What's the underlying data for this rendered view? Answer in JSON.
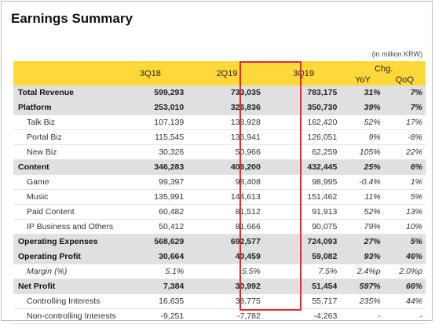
{
  "title": "Earnings Summary",
  "unit_note": "(in million KRW)",
  "headers": {
    "periods": [
      "3Q18",
      "2Q19",
      "3Q19"
    ],
    "chg": "Chg.",
    "yoy": "YoY",
    "qoq": "QoQ"
  },
  "highlight_color": "#d9302c",
  "header_color": "#ffd83a",
  "rows": [
    {
      "label": "Total Revenue",
      "v": [
        "599,293",
        "733,035",
        "783,175"
      ],
      "yoy": "31%",
      "qoq": "7%"
    },
    {
      "label": "Platform",
      "v": [
        "253,010",
        "326,836",
        "350,730"
      ],
      "yoy": "39%",
      "qoq": "7%"
    },
    {
      "label": "Talk Biz",
      "v": [
        "107,139",
        "138,928",
        "162,420"
      ],
      "yoy": "52%",
      "qoq": "17%"
    },
    {
      "label": "Portal Biz",
      "v": [
        "115,545",
        "136,941",
        "126,051"
      ],
      "yoy": "9%",
      "qoq": "-8%"
    },
    {
      "label": "New Biz",
      "v": [
        "30,326",
        "50,966",
        "62,259"
      ],
      "yoy": "105%",
      "qoq": "22%"
    },
    {
      "label": "Content",
      "v": [
        "346,283",
        "406,200",
        "432,445"
      ],
      "yoy": "25%",
      "qoq": "6%"
    },
    {
      "label": "Game",
      "v": [
        "99,397",
        "98,408",
        "98,995"
      ],
      "yoy": "-0.4%",
      "qoq": "1%"
    },
    {
      "label": "Music",
      "v": [
        "135,991",
        "144,613",
        "151,462"
      ],
      "yoy": "11%",
      "qoq": "5%"
    },
    {
      "label": "Paid Content",
      "v": [
        "60,482",
        "81,512",
        "91,913"
      ],
      "yoy": "52%",
      "qoq": "13%"
    },
    {
      "label": "IP Business and Others",
      "v": [
        "50,412",
        "81,666",
        "90,075"
      ],
      "yoy": "79%",
      "qoq": "10%"
    },
    {
      "label": "Operating Expenses",
      "v": [
        "568,629",
        "692,577",
        "724,093"
      ],
      "yoy": "27%",
      "qoq": "5%"
    },
    {
      "label": "Operating Profit",
      "v": [
        "30,664",
        "40,459",
        "59,082"
      ],
      "yoy": "93%",
      "qoq": "46%"
    },
    {
      "label": "Margin (%)",
      "v": [
        "5.1%",
        "5.5%",
        "7.5%"
      ],
      "yoy": "2.4%p",
      "qoq": "2.0%p"
    },
    {
      "label": "Net Profit",
      "v": [
        "7,384",
        "30,992",
        "51,454"
      ],
      "yoy": "597%",
      "qoq": "66%"
    },
    {
      "label": "Controlling Interests",
      "v": [
        "16,635",
        "38,775",
        "55,717"
      ],
      "yoy": "235%",
      "qoq": "44%"
    },
    {
      "label": "Non-controlling Interests",
      "v": [
        "-9,251",
        "-7,782",
        "-4,263"
      ],
      "yoy": "-",
      "qoq": "-"
    }
  ]
}
